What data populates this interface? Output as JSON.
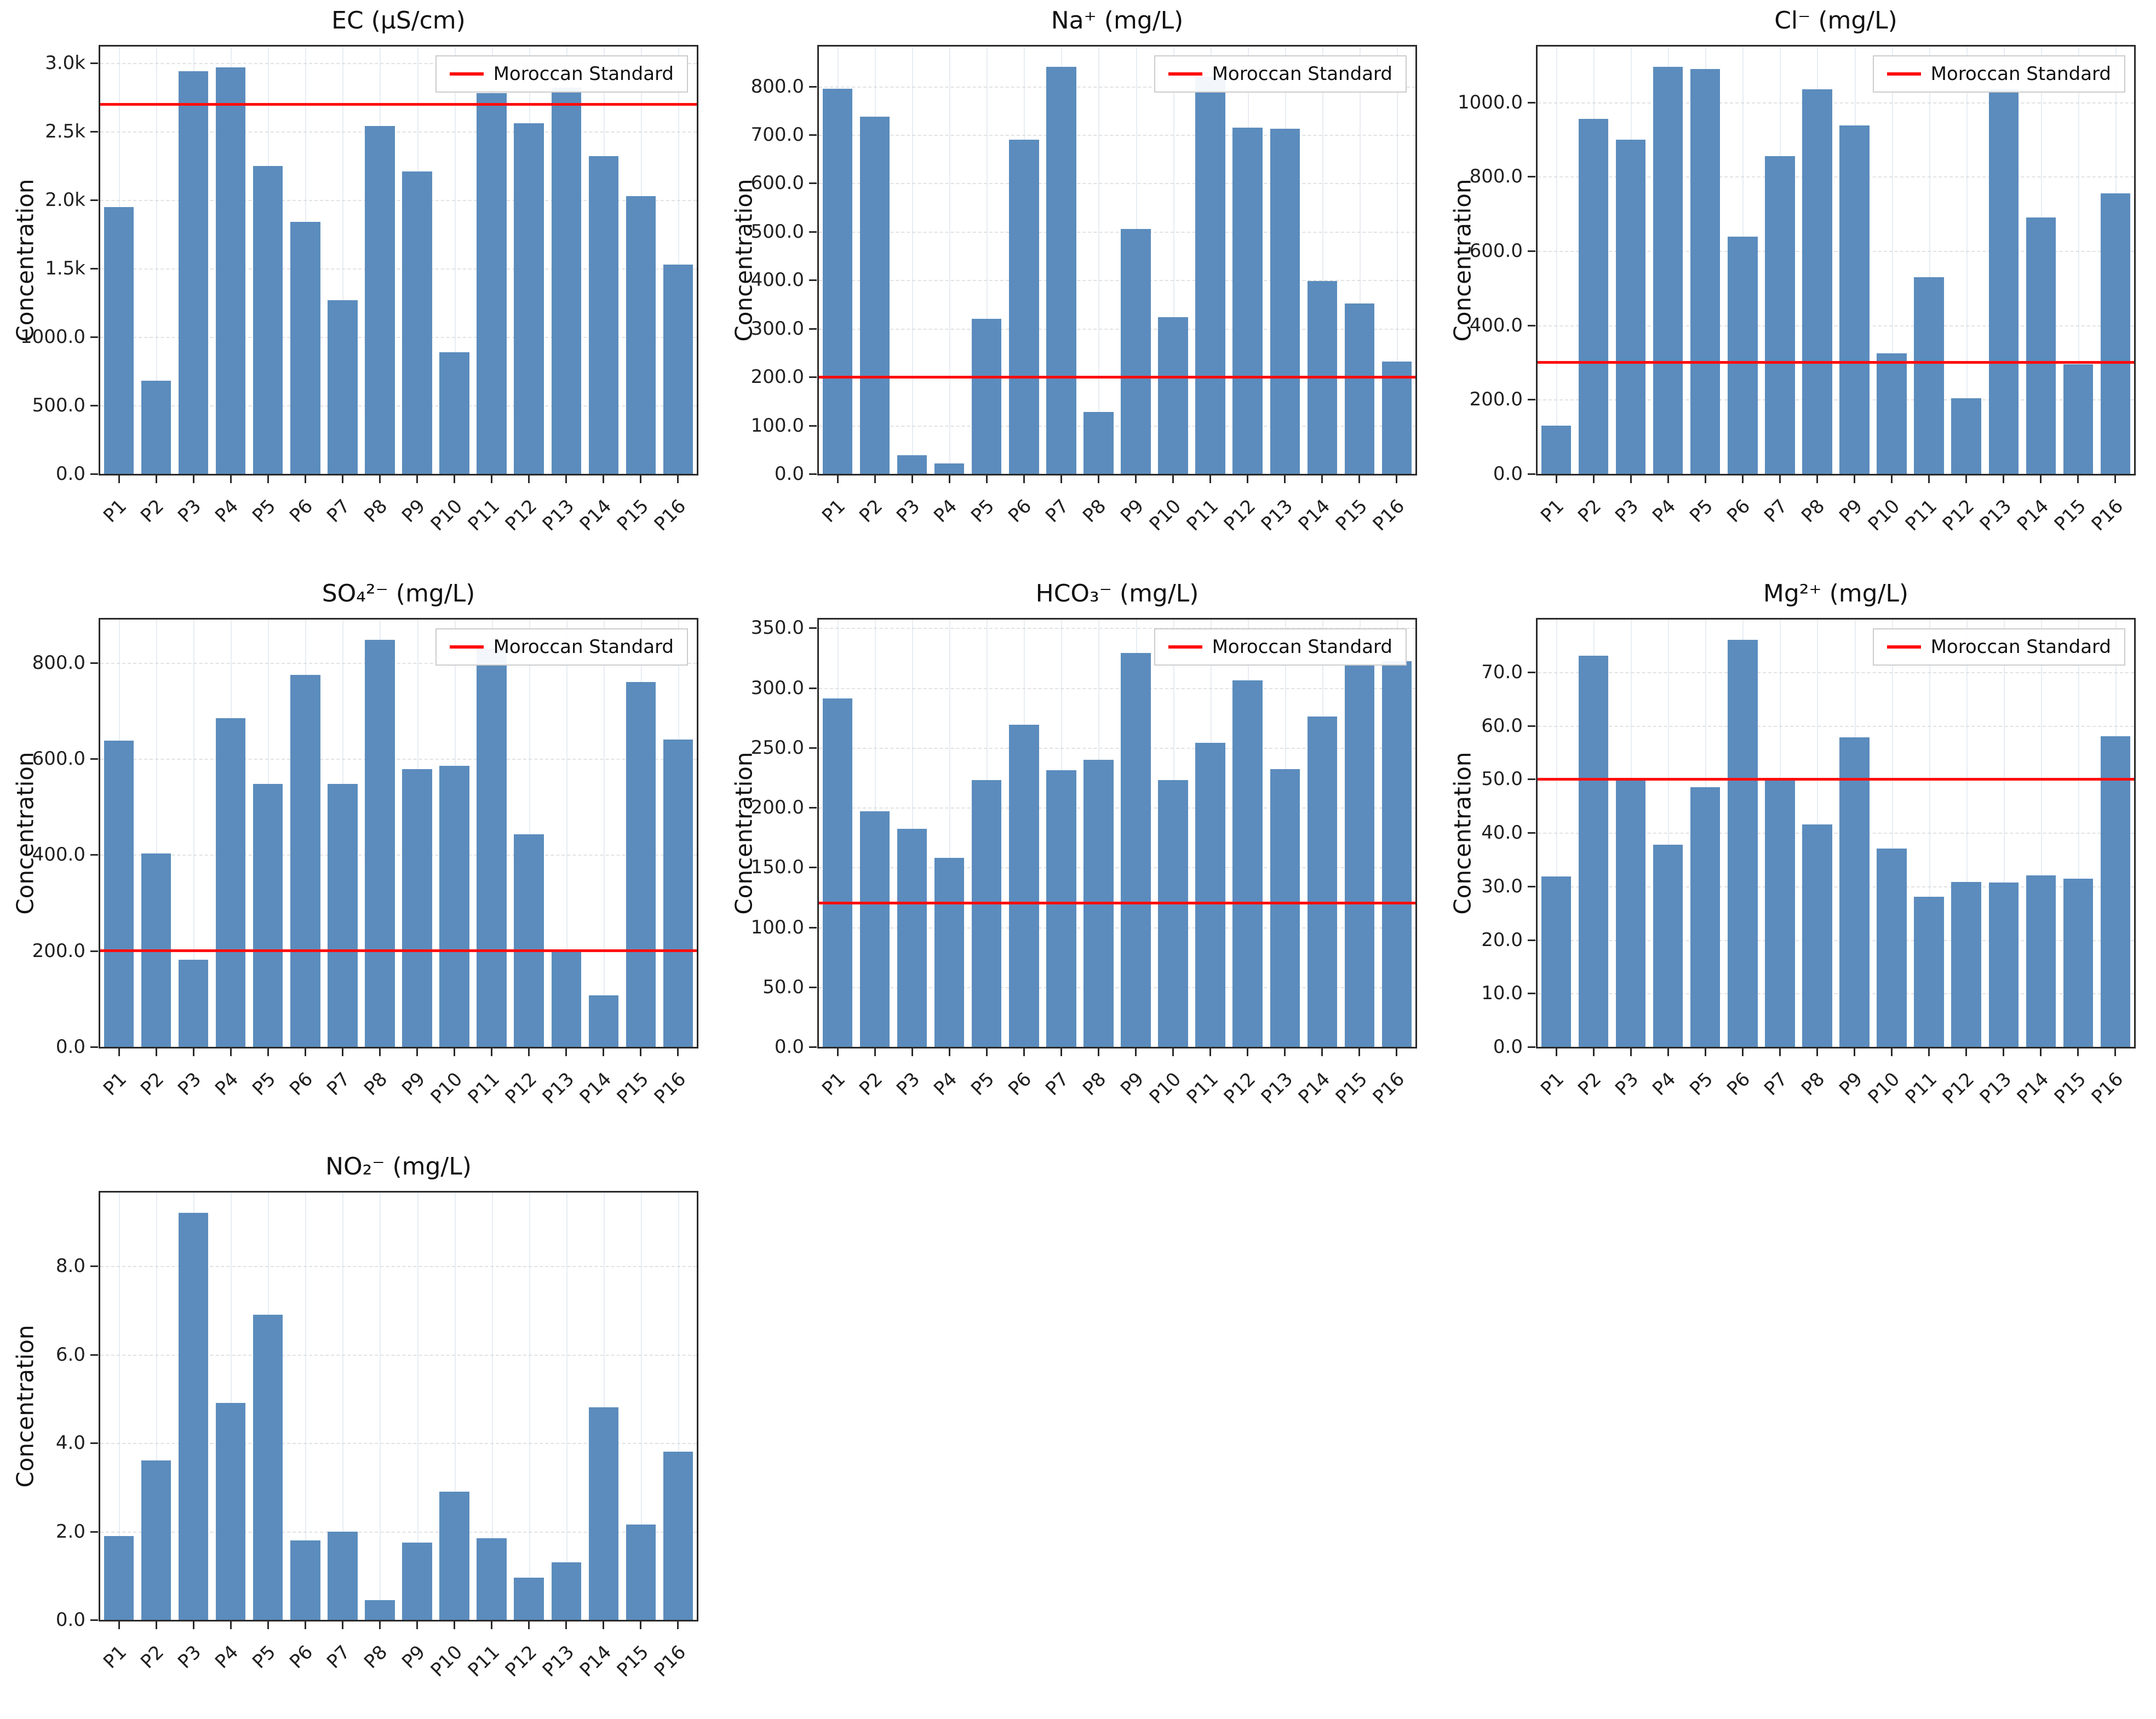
{
  "figure": {
    "background": "#ffffff",
    "rows": 3,
    "cols": 3
  },
  "colors": {
    "bar": "#5b8cbd",
    "standard_line": "#ff0d0d",
    "grid": "#bebebe",
    "spine": "#2a2a2a"
  },
  "legend": {
    "label": "Moroccan Standard"
  },
  "chart_data": [
    {
      "type": "bar",
      "title": "EC (µS/cm)",
      "ylabel": "Concentration",
      "categories": [
        "P1",
        "P2",
        "P3",
        "P4",
        "P5",
        "P6",
        "P7",
        "P8",
        "P9",
        "P10",
        "P11",
        "P12",
        "P13",
        "P14",
        "P15",
        "P16"
      ],
      "values": [
        1950,
        680,
        2940,
        2970,
        2250,
        1840,
        1270,
        2540,
        2210,
        890,
        2780,
        2560,
        2820,
        2320,
        2030,
        1530
      ],
      "standard_value": 2700,
      "legend": "Moroccan Standard",
      "legend_position": "upper right",
      "grid": true,
      "ylim": [
        0,
        3120
      ],
      "yticks": [
        {
          "value": 0,
          "label": "0.0"
        },
        {
          "value": 500,
          "label": "500.0"
        },
        {
          "value": 1000,
          "label": "1000.0"
        },
        {
          "value": 1500,
          "label": "1.5k"
        },
        {
          "value": 2000,
          "label": "2.0k"
        },
        {
          "value": 2500,
          "label": "2.5k"
        },
        {
          "value": 3000,
          "label": "3.0k"
        }
      ]
    },
    {
      "type": "bar",
      "title": "Na⁺ (mg/L)",
      "ylabel": "Concentration",
      "categories": [
        "P1",
        "P2",
        "P3",
        "P4",
        "P5",
        "P6",
        "P7",
        "P8",
        "P9",
        "P10",
        "P11",
        "P12",
        "P13",
        "P14",
        "P15",
        "P16"
      ],
      "values": [
        795,
        737,
        38,
        22,
        320,
        690,
        840,
        128,
        505,
        323,
        820,
        715,
        712,
        398,
        352,
        232
      ],
      "standard_value": 200,
      "legend": "Moroccan Standard",
      "legend_position": "upper right",
      "grid": true,
      "ylim": [
        0,
        882
      ],
      "yticks": [
        {
          "value": 0,
          "label": "0.0"
        },
        {
          "value": 100,
          "label": "100.0"
        },
        {
          "value": 200,
          "label": "200.0"
        },
        {
          "value": 300,
          "label": "300.0"
        },
        {
          "value": 400,
          "label": "400.0"
        },
        {
          "value": 500,
          "label": "500.0"
        },
        {
          "value": 600,
          "label": "600.0"
        },
        {
          "value": 700,
          "label": "700.0"
        },
        {
          "value": 800,
          "label": "800.0"
        }
      ]
    },
    {
      "type": "bar",
      "title": "Cl⁻ (mg/L)",
      "ylabel": "Concentration",
      "categories": [
        "P1",
        "P2",
        "P3",
        "P4",
        "P5",
        "P6",
        "P7",
        "P8",
        "P9",
        "P10",
        "P11",
        "P12",
        "P13",
        "P14",
        "P15",
        "P16"
      ],
      "values": [
        130,
        955,
        900,
        1095,
        1090,
        638,
        855,
        1035,
        938,
        325,
        530,
        203,
        1035,
        690,
        295,
        755
      ],
      "standard_value": 300,
      "legend": "Moroccan Standard",
      "legend_position": "upper right",
      "grid": true,
      "ylim": [
        0,
        1150
      ],
      "yticks": [
        {
          "value": 0,
          "label": "0.0"
        },
        {
          "value": 200,
          "label": "200.0"
        },
        {
          "value": 400,
          "label": "400.0"
        },
        {
          "value": 600,
          "label": "600.0"
        },
        {
          "value": 800,
          "label": "800.0"
        },
        {
          "value": 1000,
          "label": "1000.0"
        }
      ]
    },
    {
      "type": "bar",
      "title": "SO₄²⁻ (mg/L)",
      "ylabel": "Concentration",
      "categories": [
        "P1",
        "P2",
        "P3",
        "P4",
        "P5",
        "P6",
        "P7",
        "P8",
        "P9",
        "P10",
        "P11",
        "P12",
        "P13",
        "P14",
        "P15",
        "P16"
      ],
      "values": [
        638,
        403,
        182,
        685,
        548,
        775,
        548,
        848,
        578,
        585,
        830,
        443,
        197,
        107,
        760,
        640
      ],
      "standard_value": 200,
      "legend": "Moroccan Standard",
      "legend_position": "upper right",
      "grid": true,
      "ylim": [
        0,
        890
      ],
      "yticks": [
        {
          "value": 0,
          "label": "0.0"
        },
        {
          "value": 200,
          "label": "200.0"
        },
        {
          "value": 400,
          "label": "400.0"
        },
        {
          "value": 600,
          "label": "600.0"
        },
        {
          "value": 800,
          "label": "800.0"
        }
      ]
    },
    {
      "type": "bar",
      "title": "HCO₃⁻ (mg/L)",
      "ylabel": "Concentration",
      "categories": [
        "P1",
        "P2",
        "P3",
        "P4",
        "P5",
        "P6",
        "P7",
        "P8",
        "P9",
        "P10",
        "P11",
        "P12",
        "P13",
        "P14",
        "P15",
        "P16"
      ],
      "values": [
        291,
        197,
        182,
        158,
        223,
        269,
        231,
        240,
        329,
        223,
        254,
        306,
        232,
        276,
        320,
        322
      ],
      "standard_value": 120,
      "legend": "Moroccan Standard",
      "legend_position": "upper right",
      "grid": true,
      "ylim": [
        0,
        357
      ],
      "yticks": [
        {
          "value": 0,
          "label": "0.0"
        },
        {
          "value": 50,
          "label": "50.0"
        },
        {
          "value": 100,
          "label": "100.0"
        },
        {
          "value": 150,
          "label": "150.0"
        },
        {
          "value": 200,
          "label": "200.0"
        },
        {
          "value": 250,
          "label": "250.0"
        },
        {
          "value": 300,
          "label": "300.0"
        },
        {
          "value": 350,
          "label": "350.0"
        }
      ]
    },
    {
      "type": "bar",
      "title": "Mg²⁺ (mg/L)",
      "ylabel": "Concentration",
      "categories": [
        "P1",
        "P2",
        "P3",
        "P4",
        "P5",
        "P6",
        "P7",
        "P8",
        "P9",
        "P10",
        "P11",
        "P12",
        "P13",
        "P14",
        "P15",
        "P16"
      ],
      "values": [
        31.8,
        73,
        50,
        37.8,
        48.5,
        76,
        50,
        41.5,
        57.8,
        37,
        28,
        30.8,
        30.7,
        32,
        31.4,
        58
      ],
      "standard_value": 50,
      "legend": "Moroccan Standard",
      "legend_position": "upper right",
      "grid": true,
      "ylim": [
        0,
        79.8
      ],
      "yticks": [
        {
          "value": 0,
          "label": "0.0"
        },
        {
          "value": 10,
          "label": "10.0"
        },
        {
          "value": 20,
          "label": "20.0"
        },
        {
          "value": 30,
          "label": "30.0"
        },
        {
          "value": 40,
          "label": "40.0"
        },
        {
          "value": 50,
          "label": "50.0"
        },
        {
          "value": 60,
          "label": "60.0"
        },
        {
          "value": 70,
          "label": "70.0"
        }
      ]
    },
    {
      "type": "bar",
      "title": "NO₂⁻ (mg/L)",
      "ylabel": "Concentration",
      "categories": [
        "P1",
        "P2",
        "P3",
        "P4",
        "P5",
        "P6",
        "P7",
        "P8",
        "P9",
        "P10",
        "P11",
        "P12",
        "P13",
        "P14",
        "P15",
        "P16"
      ],
      "values": [
        1.9,
        3.6,
        9.2,
        4.9,
        6.9,
        1.8,
        2.0,
        0.45,
        1.75,
        2.9,
        1.85,
        0.95,
        1.3,
        4.8,
        2.15,
        3.8
      ],
      "standard_value": null,
      "legend": null,
      "legend_position": null,
      "grid": true,
      "ylim": [
        0,
        9.66
      ],
      "yticks": [
        {
          "value": 0,
          "label": "0.0"
        },
        {
          "value": 2,
          "label": "2.0"
        },
        {
          "value": 4,
          "label": "4.0"
        },
        {
          "value": 6,
          "label": "6.0"
        },
        {
          "value": 8,
          "label": "8.0"
        }
      ]
    }
  ]
}
